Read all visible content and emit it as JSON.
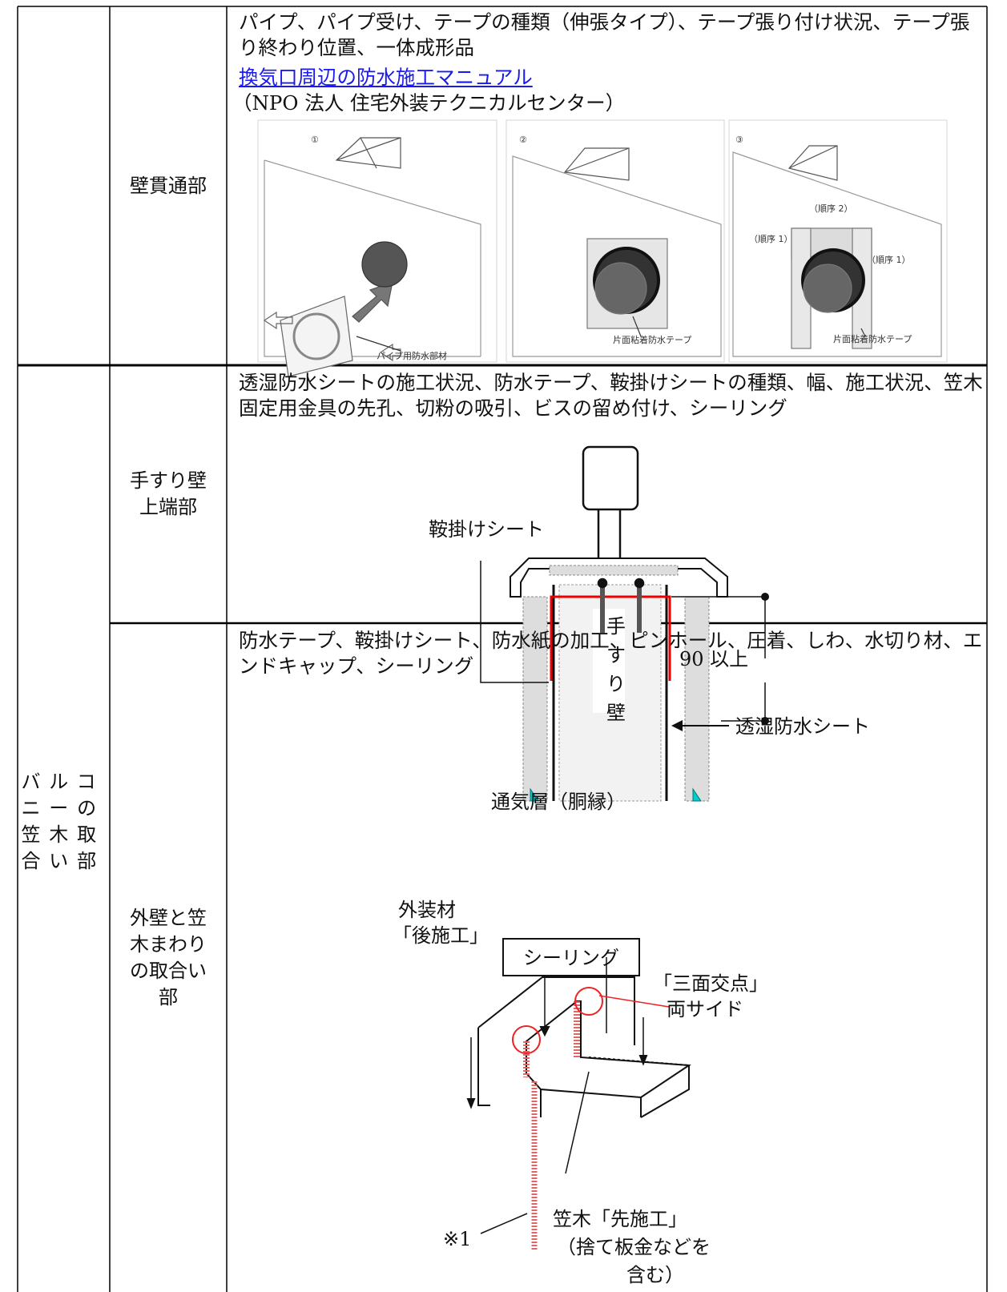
{
  "table": {
    "group": "バルコニーの笠木取合い部",
    "rows": [
      {
        "item": "壁貫通部",
        "description": "パイプ、パイプ受け、テープの種類（伸張タイプ）、テープ張り付け状況、テープ張り終わり位置、一体成形品",
        "link": "換気口周辺の防水施工マニュアル",
        "source": "（NPO 法人 住宅外装テクニカルセンター）",
        "figure": {
          "steps": [
            "①",
            "②",
            "③"
          ],
          "labels": [
            "パイプ用防水部材",
            "片面粘着防水テープ",
            "（順序 2）",
            "（順序 1）",
            "（順序 1）",
            "片面粘着防水テープ"
          ]
        }
      },
      {
        "item": "手すり壁上端部",
        "description": "透湿防水シートの施工状況、防水テープ、鞍掛けシートの種類、幅、施工状況、笠木固定用金具の先孔、切粉の吸引、ビスの留め付け、シーリング",
        "figure": {
          "sheet_label": "鞍掛けシート",
          "dimension": "90 以上",
          "wall_label": [
            "手",
            "す",
            "り",
            "壁"
          ],
          "membrane_label": "透湿防水シート",
          "air_layer_label": "通気層（胴縁）"
        }
      },
      {
        "item": "外壁と笠木まわりの取合い部",
        "description": "防水テープ、鞍掛けシート、防水紙の加工、ピンホール、圧着、しわ、水切り材、エンドキャップ、シーリング",
        "figure": {
          "sealing": "シーリング",
          "cladding": [
            "外装材",
            "「後施工」"
          ],
          "junction": [
            "「三面交点」",
            "両サイド"
          ],
          "note": "※1",
          "coping": [
            "笠木「先施工」",
            "（捨て板金などを",
            "含む）"
          ]
        }
      }
    ]
  }
}
